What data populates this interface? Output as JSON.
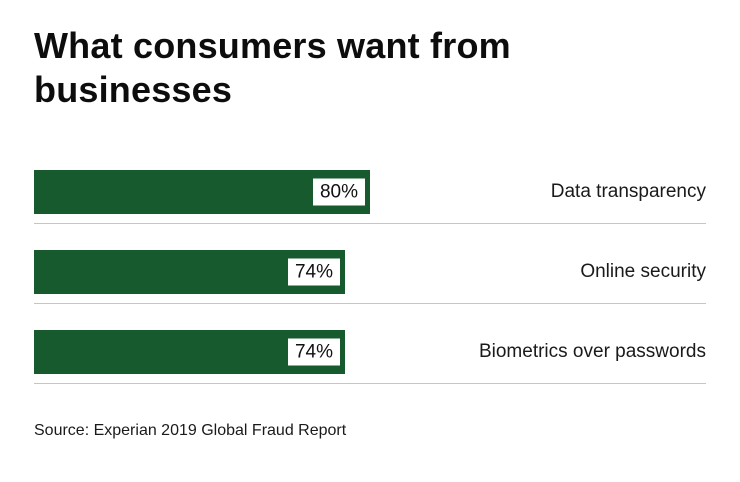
{
  "chart_data": {
    "type": "bar",
    "orientation": "horizontal",
    "title": "What consumers want from businesses",
    "categories": [
      "Data transparency",
      "Online security",
      "Biometrics over passwords"
    ],
    "values": [
      80,
      74,
      74
    ],
    "value_labels": [
      "80%",
      "74%",
      "74%"
    ],
    "xlim": [
      0,
      100
    ],
    "grid": false,
    "legend": "none",
    "bar_color": "#175a2e",
    "source": "Source: Experian 2019 Global Fraud Report"
  },
  "colors": {
    "background": "#ffffff",
    "bar": "#175a2e",
    "divider": "#c6c6c6",
    "text": "#111111"
  }
}
